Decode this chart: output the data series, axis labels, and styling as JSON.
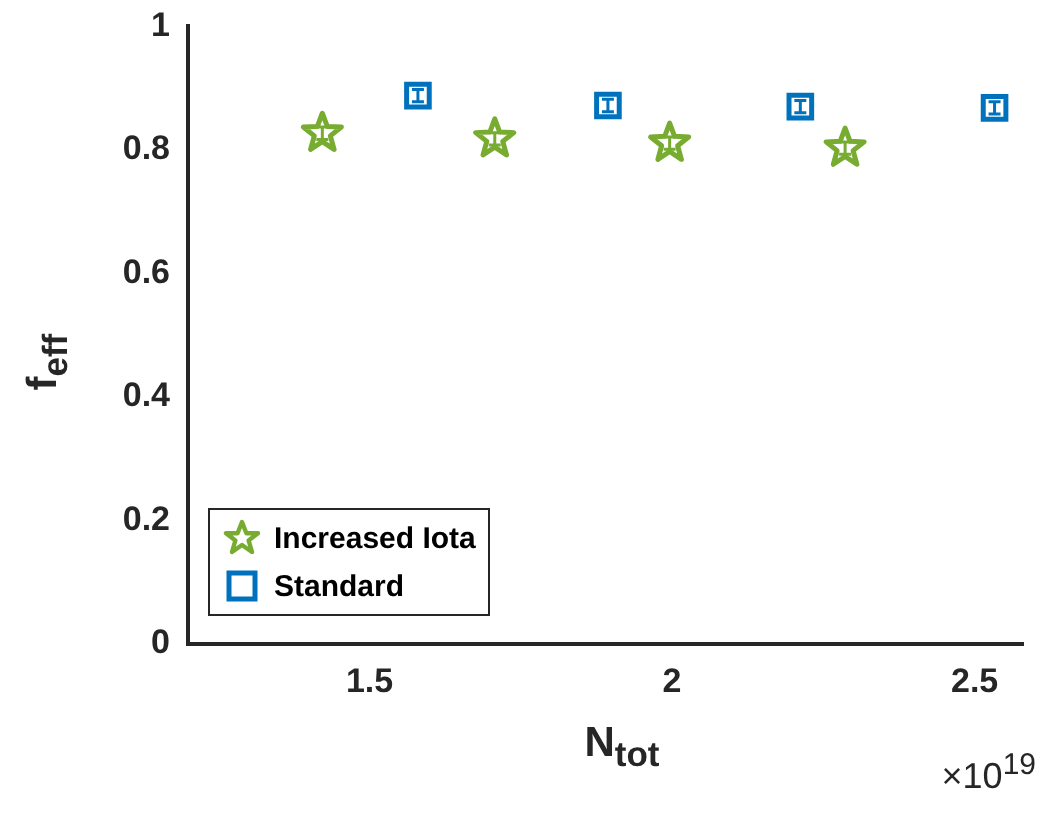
{
  "chart_data": {
    "type": "scatter",
    "xlabel": "N$_{tot}$",
    "ylabel": "f$_{eff}$",
    "annotations": [
      "×10$^{19}$"
    ],
    "xlim": [
      1.2,
      2.58
    ],
    "xticks": [
      1.5,
      2,
      2.5
    ],
    "ylim": [
      0,
      1
    ],
    "yticks": [
      0,
      0.2,
      0.4,
      0.6,
      0.8,
      1
    ],
    "grid": false,
    "legend": "bottom left",
    "series": [
      {
        "name": "Increased Iota",
        "color": "#77ac30",
        "marker": "star",
        "x": [
          1.422,
          1.707,
          1.996,
          2.286
        ],
        "values": [
          0.827,
          0.818,
          0.811,
          0.803
        ],
        "errors": [
          0.01,
          0.01,
          0.01,
          0.01
        ]
      },
      {
        "name": "Standard",
        "color": "#0072bd",
        "marker": "square",
        "x": [
          1.58,
          1.894,
          2.212,
          2.533
        ],
        "values": [
          0.888,
          0.872,
          0.87,
          0.868
        ],
        "errors": [
          0.01,
          0.01,
          0.01,
          0.01
        ]
      }
    ]
  }
}
